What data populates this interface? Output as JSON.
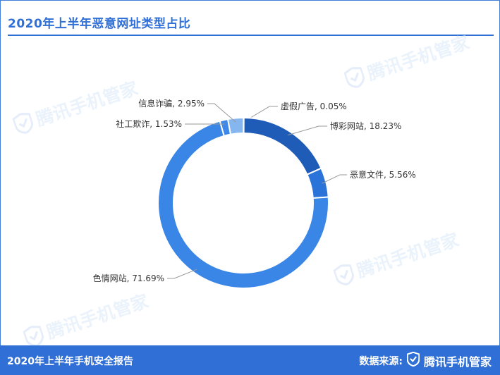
{
  "title": "2020年上半年恶意网址类型占比",
  "watermark": "腾讯手机管家",
  "footer": {
    "report": "2020年上半年手机安全报告",
    "source_label": "数据来源:",
    "brand": "腾讯手机管家"
  },
  "chart_data": {
    "type": "pie",
    "subtype": "donut",
    "slices": [
      {
        "name": "虚假广告",
        "value": 0.05,
        "label": "虚假广告, 0.05%",
        "color": "#2f6ed0"
      },
      {
        "name": "博彩网站",
        "value": 18.23,
        "label": "博彩网站, 18.23%",
        "color": "#1f5cb8"
      },
      {
        "name": "恶意文件",
        "value": 5.56,
        "label": "恶意文件, 5.56%",
        "color": "#2a74d9"
      },
      {
        "name": "色情网站",
        "value": 71.69,
        "label": "色情网站, 71.69%",
        "color": "#3a86e6"
      },
      {
        "name": "社工欺诈",
        "value": 1.53,
        "label": "社工欺诈, 1.53%",
        "color": "#3d88e8"
      },
      {
        "name": "信息诈骗",
        "value": 2.95,
        "label": "信息诈骗, 2.95%",
        "color": "#86b6f0"
      }
    ]
  }
}
